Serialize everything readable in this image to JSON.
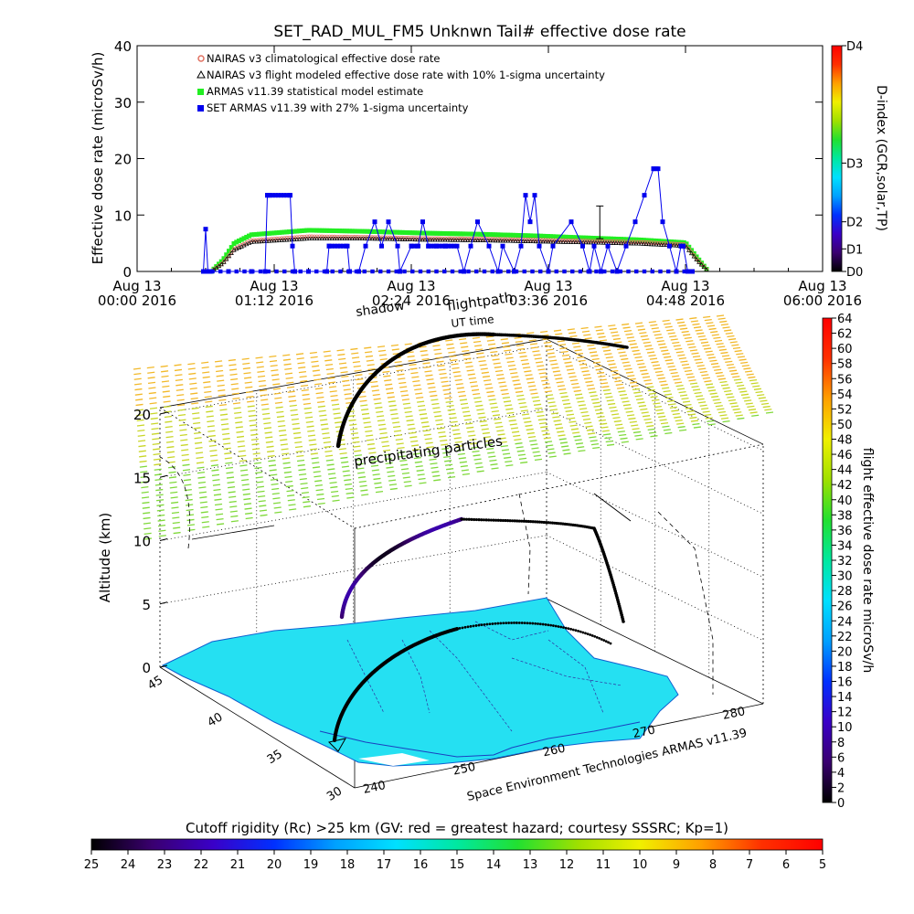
{
  "chart_data": [
    {
      "type": "scatter",
      "title": "SET_RAD_MUL_FM5 Unknwn Tail#  effective dose rate",
      "ylabel": "Effective dose rate (microSv/h)",
      "ylim": [
        0,
        40
      ],
      "yticks": [
        "0",
        "10",
        "20",
        "30",
        "40"
      ],
      "xticks": [
        {
          "h": 0.0,
          "d": "Aug 13",
          "t": "00:00 2016"
        },
        {
          "h": 1.2,
          "d": "Aug 13",
          "t": "01:12 2016"
        },
        {
          "h": 2.4,
          "d": "Aug 13",
          "t": "02:24 2016"
        },
        {
          "h": 3.6,
          "d": "Aug 13",
          "t": "03:36 2016"
        },
        {
          "h": 4.8,
          "d": "Aug 13",
          "t": "04:48 2016"
        },
        {
          "h": 6.0,
          "d": "Aug 13",
          "t": "06:00 2016"
        }
      ],
      "legend": [
        {
          "label": "NAIRAS v3 climatological effective dose rate",
          "color": "#e07060"
        },
        {
          "label": "NAIRAS v3 flight modeled effective dose rate with 10% 1-sigma uncertainty",
          "color": "#000000"
        },
        {
          "label": "ARMAS v11.39 statistical model estimate",
          "color": "#22ee22"
        },
        {
          "label": "SET ARMAS v11.39 with 27% 1-sigma uncertainty",
          "color": "#0000ee"
        }
      ],
      "series": [
        {
          "name": "ARMAS v11.39 statistical model estimate",
          "color": "#22ee22",
          "x": [
            0.65,
            0.75,
            0.85,
            1.0,
            1.5,
            2.0,
            2.5,
            3.0,
            3.5,
            4.0,
            4.4,
            4.8,
            4.9,
            5.0
          ],
          "y": [
            0,
            2,
            5,
            6.5,
            7.3,
            7.1,
            6.8,
            6.6,
            6.3,
            5.9,
            5.6,
            5.1,
            2.5,
            0
          ]
        },
        {
          "name": "NAIRAS v3 climatological effective dose rate",
          "color": "#e07060",
          "x": [
            0.65,
            0.75,
            0.85,
            1.0,
            1.5,
            2.0,
            2.5,
            3.0,
            3.5,
            4.0,
            4.4,
            4.8,
            4.9,
            5.0
          ],
          "y": [
            0,
            1.5,
            4,
            5.5,
            6.2,
            6.1,
            5.9,
            5.8,
            5.6,
            5.4,
            5.2,
            4.8,
            2.2,
            0
          ]
        },
        {
          "name": "NAIRAS v3 flight modeled effective dose rate with 10% 1-sigma uncertainty",
          "color": "#000000",
          "x": [
            0.65,
            0.75,
            0.85,
            1.0,
            1.5,
            2.0,
            2.5,
            3.0,
            3.5,
            4.0,
            4.4,
            4.8,
            4.9,
            5.0
          ],
          "y": [
            0,
            1.4,
            3.8,
            5.2,
            5.8,
            5.8,
            5.6,
            5.5,
            5.3,
            5.1,
            4.9,
            4.5,
            2.0,
            0
          ]
        },
        {
          "name": "SET ARMAS v11.39 with 27% 1-sigma uncertainty",
          "color": "#0000ee",
          "x": [
            0.58,
            0.6,
            0.62,
            0.64,
            0.8,
            1.0,
            1.12,
            1.14,
            1.16,
            1.34,
            1.36,
            1.38,
            1.5,
            1.66,
            1.68,
            1.84,
            1.86,
            1.94,
            2.0,
            2.08,
            2.14,
            2.2,
            2.28,
            2.3,
            2.4,
            2.46,
            2.5,
            2.55,
            2.62,
            2.7,
            2.8,
            2.86,
            2.92,
            2.98,
            3.08,
            3.16,
            3.2,
            3.3,
            3.36,
            3.4,
            3.44,
            3.48,
            3.52,
            3.6,
            3.64,
            3.8,
            3.9,
            3.96,
            4.0,
            4.06,
            4.12,
            4.2,
            4.28,
            4.36,
            4.44,
            4.52,
            4.56,
            4.6,
            4.66,
            4.72,
            4.76,
            4.78,
            4.82,
            4.86
          ],
          "y": [
            0,
            7.5,
            0,
            0,
            0,
            0,
            0,
            13.5,
            13.5,
            13.5,
            4.5,
            0,
            0,
            0,
            4.5,
            4.5,
            0,
            0,
            4.5,
            8.8,
            4.5,
            8.8,
            4.5,
            0,
            4.5,
            4.5,
            8.8,
            4.5,
            4.5,
            4.5,
            4.5,
            0,
            4.5,
            8.8,
            4.5,
            0,
            4.5,
            0,
            4.5,
            13.5,
            8.8,
            13.5,
            4.5,
            0,
            4.5,
            8.8,
            4.5,
            0,
            4.5,
            0,
            4.5,
            0,
            4.5,
            8.8,
            13.5,
            18.2,
            18.2,
            8.8,
            4.5,
            0,
            4.5,
            4.5,
            0,
            0
          ]
        }
      ],
      "error_bar": {
        "x": 4.05,
        "y": 8.8,
        "lo": 5.8,
        "hi": 11.6
      },
      "colorbar": {
        "label": "D-index (GCR,solar,TP)",
        "ticks": [
          "D0",
          "D1",
          "D2",
          "D3",
          "D4"
        ],
        "positions": [
          0,
          0.1,
          0.22,
          0.48,
          1.0
        ]
      }
    },
    {
      "type": "3d-scatter",
      "zlabel": "Altitude (km)",
      "zticks": [
        "0",
        "5",
        "10",
        "15",
        "20"
      ],
      "lat_ticks": [
        "30",
        "35",
        "40",
        "45"
      ],
      "lon_ticks": [
        "240",
        "250",
        "260",
        "270",
        "280"
      ],
      "annotations": {
        "shadow": "shadow",
        "flightpath": "flightpath",
        "ut_time": "UT time",
        "precip": "precipitating particles",
        "credit": "Space Environment Technologies ARMAS v11.39"
      },
      "colorbar": {
        "label": "flight effective dose rate microSv/h",
        "min": 0,
        "max": 64,
        "ticks": [
          "0",
          "2",
          "4",
          "6",
          "8",
          "10",
          "12",
          "14",
          "16",
          "18",
          "20",
          "22",
          "24",
          "26",
          "28",
          "30",
          "32",
          "34",
          "36",
          "38",
          "40",
          "42",
          "44",
          "46",
          "48",
          "50",
          "52",
          "54",
          "56",
          "58",
          "60",
          "62",
          "64"
        ]
      }
    },
    {
      "type": "colorbar",
      "title": "Cutoff rigidity (Rc) >25 km (GV: red = greatest hazard; courtesy SSSRC; Kp=1)",
      "ticks": [
        "25",
        "24",
        "23",
        "22",
        "21",
        "20",
        "19",
        "18",
        "17",
        "16",
        "15",
        "14",
        "13",
        "12",
        "11",
        "10",
        "9",
        "8",
        "7",
        "6",
        "5"
      ]
    }
  ],
  "colors": {
    "rainbow": [
      "#000000",
      "#3a0070",
      "#3a00c8",
      "#0030ff",
      "#00a0ff",
      "#00e0ff",
      "#00e8a0",
      "#22e030",
      "#a0e000",
      "#f0f000",
      "#ffa000",
      "#ff3000",
      "#ff0000"
    ],
    "map_fill": "#25e0f2",
    "dlayer": [
      "#f2b92a",
      "#c8d628",
      "#7fd93a"
    ]
  }
}
